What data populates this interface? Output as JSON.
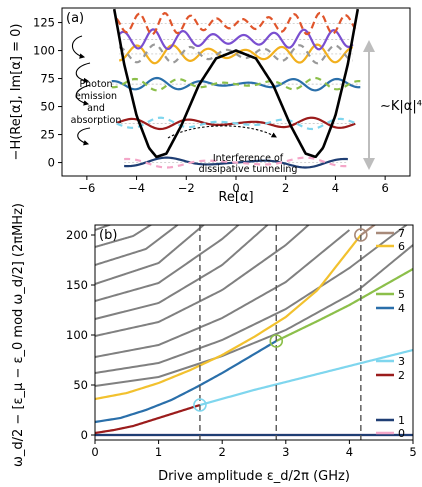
{
  "chart_data": [
    {
      "type": "line",
      "panel_label": "(a)",
      "xlabel": "Re[α]",
      "ylabel": "−H(Re[α], Im[α] = 0)",
      "xlim": [
        -7,
        7
      ],
      "ylim": [
        -12,
        138
      ],
      "xticks": [
        "−6",
        "−4",
        "−2",
        "0",
        "2",
        "4",
        "6"
      ],
      "xtick_values": [
        -6,
        -4,
        -2,
        0,
        2,
        4,
        6
      ],
      "yticks": [
        "0",
        "25",
        "50",
        "75",
        "100",
        "125"
      ],
      "ytick_values": [
        0,
        25,
        50,
        75,
        100,
        125
      ],
      "potential": {
        "description": "double-well Kerr-cat potential",
        "points": [
          [
            -4.9,
            137
          ],
          [
            -4.5,
            88
          ],
          [
            -4,
            42
          ],
          [
            -3.5,
            13
          ],
          [
            -3.2,
            5
          ],
          [
            -2.8,
            8
          ],
          [
            -2.2,
            33
          ],
          [
            -1.5,
            69
          ],
          [
            -0.8,
            93
          ],
          [
            0,
            100
          ],
          [
            0.8,
            93
          ],
          [
            1.5,
            69
          ],
          [
            2.2,
            33
          ],
          [
            2.8,
            8
          ],
          [
            3.2,
            5
          ],
          [
            3.5,
            13
          ],
          [
            4,
            42
          ],
          [
            4.5,
            88
          ],
          [
            4.9,
            137
          ]
        ]
      },
      "wavefunctions": [
        {
          "energy": 0,
          "x_range": [
            -4.5,
            4.5
          ],
          "colors": [
            "#1f3e74",
            "#f4a6c8"
          ]
        },
        {
          "energy": 35,
          "x_range": [
            -4.8,
            4.8
          ],
          "colors": [
            "#9b1c1c",
            "#7fd6ee"
          ]
        },
        {
          "energy": 70,
          "x_range": [
            -5,
            5
          ],
          "colors": [
            "#2a6faa",
            "#8cbf4a"
          ]
        },
        {
          "energy": 97,
          "x_range": [
            -4.7,
            4.7
          ],
          "colors": [
            "#f2b01e",
            "#999999"
          ]
        },
        {
          "energy": 110,
          "x_range": [
            -4.7,
            4.7
          ],
          "colors": [
            "#7a4fd0"
          ]
        },
        {
          "energy": 124,
          "x_range": [
            -4.8,
            4.8
          ],
          "colors": [
            "#e0552b"
          ]
        }
      ],
      "annotations": {
        "photon_lines": [
          "Photon",
          "emission",
          "and",
          "absorption"
        ],
        "tunneling_lines": [
          "Interference of",
          "dissipative tunneling"
        ],
        "scaling": "∼K|α|⁴"
      }
    },
    {
      "type": "line",
      "panel_label": "(b)",
      "xlabel": "Drive amplitude ε_d/2π (GHz)",
      "ylabel": "ω_d/2 − [ε_μ − ε_0 mod ω_d/2] (2πMHz)",
      "xlim": [
        0,
        5
      ],
      "ylim": [
        -5,
        210
      ],
      "xticks": [
        "0",
        "1",
        "2",
        "3",
        "4",
        "5"
      ],
      "xtick_values": [
        0,
        1,
        2,
        3,
        4,
        5
      ],
      "yticks": [
        "0",
        "50",
        "100",
        "150",
        "200"
      ],
      "ytick_values": [
        0,
        50,
        100,
        150,
        200
      ],
      "vertical_dashed_lines_x": [
        1.65,
        2.85,
        4.18
      ],
      "circle_markers": [
        {
          "x": 1.65,
          "y": 30,
          "color": "#7fd6ee"
        },
        {
          "x": 2.85,
          "y": 94,
          "color": "#8cbf4a"
        },
        {
          "x": 4.18,
          "y": 200,
          "color": "#a88a7a"
        }
      ],
      "series": [
        {
          "name": "0",
          "color": "#f4a6c8",
          "x": [
            0,
            5
          ],
          "y": [
            0,
            0
          ]
        },
        {
          "name": "1",
          "color": "#1f3e74",
          "x": [
            0,
            5
          ],
          "y": [
            0,
            0
          ]
        },
        {
          "name": "2",
          "color": "#9b1c1c",
          "x": [
            0,
            0.3,
            0.6,
            0.9,
            1.2,
            1.5,
            1.65
          ],
          "y": [
            2,
            5,
            9,
            15,
            21,
            27,
            30
          ]
        },
        {
          "name": "3",
          "color": "#7fd6ee",
          "x": [
            1.65,
            2.5,
            3.5,
            4.5,
            5
          ],
          "y": [
            30,
            45,
            61,
            77,
            85
          ]
        },
        {
          "name": "4",
          "color": "#2a6faa",
          "x": [
            0,
            0.4,
            0.8,
            1.2,
            1.6,
            2.0,
            2.4,
            2.85
          ],
          "y": [
            13,
            17,
            25,
            35,
            48,
            62,
            77,
            94
          ]
        },
        {
          "name": "5",
          "color": "#8cbf4a",
          "x": [
            2.85,
            3.5,
            4.0,
            4.5,
            5
          ],
          "y": [
            94,
            114,
            130,
            148,
            166
          ]
        },
        {
          "name": "6",
          "color": "#f2c12e",
          "x": [
            0,
            0.5,
            1.0,
            1.5,
            2.0,
            2.5,
            3.0,
            3.5,
            4.18
          ],
          "y": [
            36,
            42,
            52,
            65,
            80,
            98,
            118,
            145,
            200
          ]
        },
        {
          "name": "7",
          "color": "#a88a7a",
          "x": [
            4.18,
            4.5,
            5
          ],
          "y": [
            200,
            215,
            240
          ]
        }
      ],
      "background_levels_color": "#808080",
      "background_levels": [
        {
          "x": [
            0,
            1,
            2,
            3,
            4,
            4.18,
            5
          ],
          "y": [
            49,
            58,
            79,
            105,
            140,
            147,
            190
          ]
        },
        {
          "x": [
            0,
            1,
            2,
            3,
            4,
            5
          ],
          "y": [
            62,
            72,
            95,
            126,
            167,
            215
          ]
        },
        {
          "x": [
            0,
            1,
            2,
            3,
            4
          ],
          "y": [
            78,
            90,
            117,
            153,
            205
          ]
        },
        {
          "x": [
            0,
            1,
            2,
            3,
            3.5
          ],
          "y": [
            99,
            113,
            145,
            190,
            218
          ]
        },
        {
          "x": [
            0,
            1,
            2,
            2.8
          ],
          "y": [
            116,
            132,
            170,
            215
          ]
        },
        {
          "x": [
            0,
            1,
            2,
            2.4
          ],
          "y": [
            134,
            152,
            196,
            218
          ]
        },
        {
          "x": [
            0,
            1,
            1.8
          ],
          "y": [
            151,
            172,
            215
          ]
        },
        {
          "x": [
            0,
            0.8,
            1.4
          ],
          "y": [
            170,
            186,
            215
          ]
        },
        {
          "x": [
            0,
            0.6,
            1.0
          ],
          "y": [
            188,
            199,
            215
          ]
        },
        {
          "x": [
            0,
            0.4
          ],
          "y": [
            205,
            214
          ]
        }
      ],
      "legend_labels": [
        "7",
        "6",
        "5",
        "4",
        "3",
        "2",
        "1",
        "0"
      ],
      "legend_colors": [
        "#a88a7a",
        "#f2c12e",
        "#8cbf4a",
        "#2a6faa",
        "#7fd6ee",
        "#9b1c1c",
        "#1f3e74",
        "#f4a6c8"
      ]
    }
  ]
}
